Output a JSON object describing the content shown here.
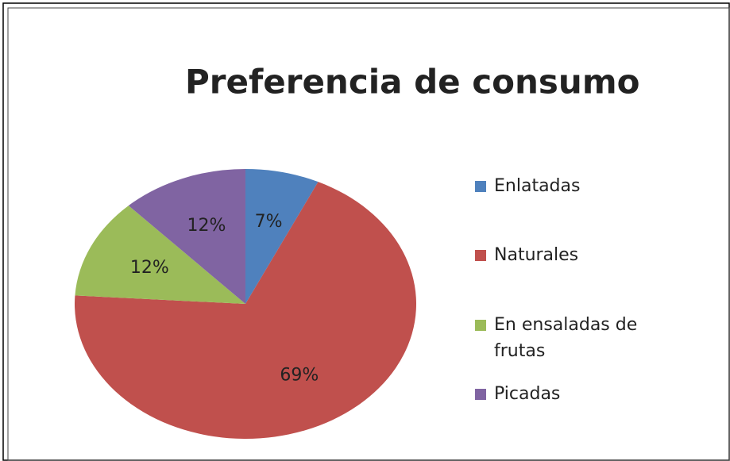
{
  "chart_data": {
    "type": "pie",
    "title": "Preferencia de consumo",
    "categories": [
      "Enlatadas",
      "Naturales",
      "En ensaladas de frutas",
      "Picadas"
    ],
    "values": [
      7,
      69,
      12,
      12
    ],
    "value_labels": [
      "7%",
      "69%",
      "12%",
      "12%"
    ],
    "colors": [
      "#4f81bd",
      "#c0504d",
      "#9bbb59",
      "#8064a2"
    ],
    "legend": "right"
  }
}
